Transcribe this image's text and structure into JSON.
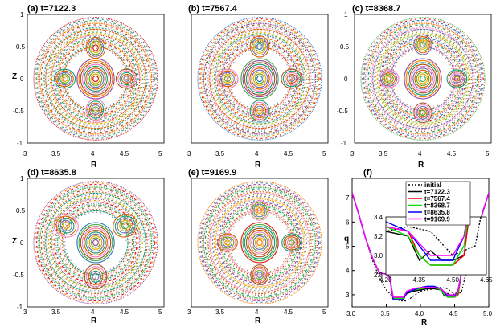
{
  "panels": [
    {
      "label": "(a) t=7122.3",
      "palette": [
        "#e41a1c",
        "#377eb8",
        "#4daf4a",
        "#984ea3",
        "#ff7f00",
        "#a65628",
        "#f781bf",
        "#1b9e77",
        "#d95f02",
        "#7570b3",
        "#66a61e",
        "#e6ab02"
      ]
    },
    {
      "label": "(b) t=7567.4",
      "palette": [
        "#377eb8",
        "#e41a1c",
        "#ff7f00",
        "#4daf4a",
        "#984ea3",
        "#a65628",
        "#1b9e77",
        "#f781bf",
        "#d95f02",
        "#7570b3",
        "#e6ab02",
        "#66a61e"
      ]
    },
    {
      "label": "(c) t=8368.7",
      "palette": [
        "#4daf4a",
        "#e41a1c",
        "#377eb8",
        "#984ea3",
        "#ff7f00",
        "#1b9e77",
        "#a65628",
        "#f781bf",
        "#7570b3",
        "#d95f02",
        "#66a61e",
        "#e6ab02"
      ]
    },
    {
      "label": "(d) t=8635.8",
      "palette": [
        "#984ea3",
        "#ff7f00",
        "#e41a1c",
        "#377eb8",
        "#4daf4a",
        "#a65628",
        "#f781bf",
        "#d95f02",
        "#1b9e77",
        "#7570b3",
        "#e6ab02",
        "#66a61e"
      ]
    },
    {
      "label": "(e) t=9169.9",
      "palette": [
        "#ff7f00",
        "#377eb8",
        "#984ea3",
        "#e41a1c",
        "#4daf4a",
        "#1b9e77",
        "#a65628",
        "#d95f02",
        "#f781bf",
        "#66a61e",
        "#7570b3",
        "#e6ab02"
      ]
    }
  ],
  "poincare_axes": {
    "xlabel": "R",
    "ylabel": "Z",
    "xticks": [
      "3",
      "3.5",
      "4",
      "4.5",
      "5"
    ],
    "yticks": [
      "1",
      "0.5",
      "0",
      "-0.5",
      "-1"
    ]
  },
  "chart_data": {
    "type": "line",
    "title": "(f)",
    "xlabel": "R",
    "ylabel": "q",
    "xlim": [
      3.0,
      5.0
    ],
    "ylim": [
      2.5,
      7.8
    ],
    "xticks": [
      "3.0",
      "3.5",
      "4.0",
      "4.5",
      "5.0"
    ],
    "yticks": [
      "3",
      "4",
      "5",
      "6",
      "7"
    ],
    "legend_position": "top-center",
    "series": [
      {
        "name": "initial",
        "color": "#000000",
        "dashed": true,
        "x": [
          3.0,
          3.1,
          3.2,
          3.3,
          3.4,
          3.5,
          3.6,
          3.7,
          3.8,
          3.9,
          4.0,
          4.1,
          4.2,
          4.3,
          4.4,
          4.5,
          4.6,
          4.7,
          4.8,
          4.9,
          5.0
        ],
        "y": [
          7.2,
          6.3,
          5.3,
          4.4,
          3.7,
          3.2,
          2.9,
          2.75,
          2.75,
          2.95,
          3.15,
          3.2,
          3.25,
          3.3,
          3.25,
          3.0,
          3.1,
          4.3,
          5.5,
          6.3,
          7.2
        ]
      },
      {
        "name": "t=7122.3",
        "color": "#000000",
        "dashed": false,
        "x": [
          3.0,
          3.1,
          3.2,
          3.3,
          3.4,
          3.5,
          3.55,
          3.6,
          3.75,
          3.8,
          3.9,
          4.0,
          4.1,
          4.2,
          4.3,
          4.35,
          4.4,
          4.45,
          4.5,
          4.55,
          4.6,
          4.7,
          4.8,
          4.9,
          5.0
        ],
        "y": [
          7.2,
          6.3,
          5.3,
          4.5,
          3.9,
          3.85,
          3.75,
          2.85,
          2.85,
          3.05,
          3.15,
          3.2,
          3.25,
          3.25,
          3.2,
          2.95,
          3.05,
          2.95,
          2.95,
          3.0,
          3.9,
          4.3,
          5.5,
          6.3,
          7.2
        ]
      },
      {
        "name": "t=7567.4",
        "color": "#ff0000",
        "dashed": false,
        "x": [
          3.0,
          3.1,
          3.2,
          3.3,
          3.4,
          3.5,
          3.55,
          3.6,
          3.75,
          3.8,
          3.9,
          4.0,
          4.1,
          4.2,
          4.3,
          4.35,
          4.4,
          4.5,
          4.55,
          4.6,
          4.7,
          4.8,
          4.9,
          5.0
        ],
        "y": [
          7.2,
          6.3,
          5.3,
          4.5,
          3.9,
          3.85,
          3.7,
          2.9,
          2.9,
          3.1,
          3.2,
          3.25,
          3.3,
          3.3,
          3.25,
          3.0,
          2.9,
          2.9,
          3.0,
          3.9,
          4.3,
          5.5,
          6.3,
          7.2
        ]
      },
      {
        "name": "t=8368.7",
        "color": "#00dd00",
        "dashed": false,
        "x": [
          3.0,
          3.1,
          3.2,
          3.3,
          3.4,
          3.5,
          3.55,
          3.6,
          3.75,
          3.8,
          3.9,
          4.0,
          4.1,
          4.2,
          4.3,
          4.35,
          4.4,
          4.5,
          4.55,
          4.6,
          4.7,
          4.8,
          4.9,
          5.0
        ],
        "y": [
          7.2,
          6.3,
          5.3,
          4.5,
          3.9,
          3.85,
          3.7,
          2.85,
          2.85,
          3.1,
          3.2,
          3.25,
          3.3,
          3.3,
          3.2,
          3.0,
          2.9,
          2.9,
          3.1,
          3.9,
          4.3,
          5.5,
          6.3,
          7.2
        ]
      },
      {
        "name": "t=8635.8",
        "color": "#0000ff",
        "dashed": false,
        "x": [
          3.0,
          3.1,
          3.2,
          3.3,
          3.4,
          3.5,
          3.55,
          3.6,
          3.75,
          3.8,
          3.9,
          4.0,
          4.1,
          4.2,
          4.3,
          4.4,
          4.5,
          4.55,
          4.6,
          4.7,
          4.8,
          4.9,
          5.0
        ],
        "y": [
          7.2,
          6.3,
          5.3,
          4.5,
          3.9,
          3.85,
          3.7,
          2.8,
          2.8,
          3.1,
          3.2,
          3.3,
          3.35,
          3.35,
          3.25,
          2.95,
          2.95,
          3.2,
          3.9,
          4.3,
          5.5,
          6.3,
          7.2
        ]
      },
      {
        "name": "t=9169.9",
        "color": "#ff00ff",
        "dashed": false,
        "x": [
          3.0,
          3.1,
          3.2,
          3.3,
          3.4,
          3.5,
          3.55,
          3.6,
          3.75,
          3.8,
          3.9,
          4.0,
          4.1,
          4.2,
          4.3,
          4.4,
          4.5,
          4.55,
          4.6,
          4.7,
          4.8,
          4.9,
          5.0
        ],
        "y": [
          7.2,
          6.3,
          5.3,
          4.5,
          3.9,
          3.85,
          3.7,
          2.9,
          2.9,
          3.15,
          3.25,
          3.3,
          3.3,
          3.3,
          3.25,
          3.0,
          3.0,
          3.2,
          3.9,
          4.3,
          5.5,
          6.3,
          7.2
        ]
      }
    ],
    "inset": {
      "xlim": [
        4.2,
        4.65
      ],
      "ylim": [
        2.8,
        3.4
      ],
      "xticks": [
        "4.20",
        "4.35",
        "4.50",
        "4.65"
      ],
      "yticks": [
        "3.4",
        "3.2",
        "3.0",
        "2.8"
      ]
    }
  }
}
